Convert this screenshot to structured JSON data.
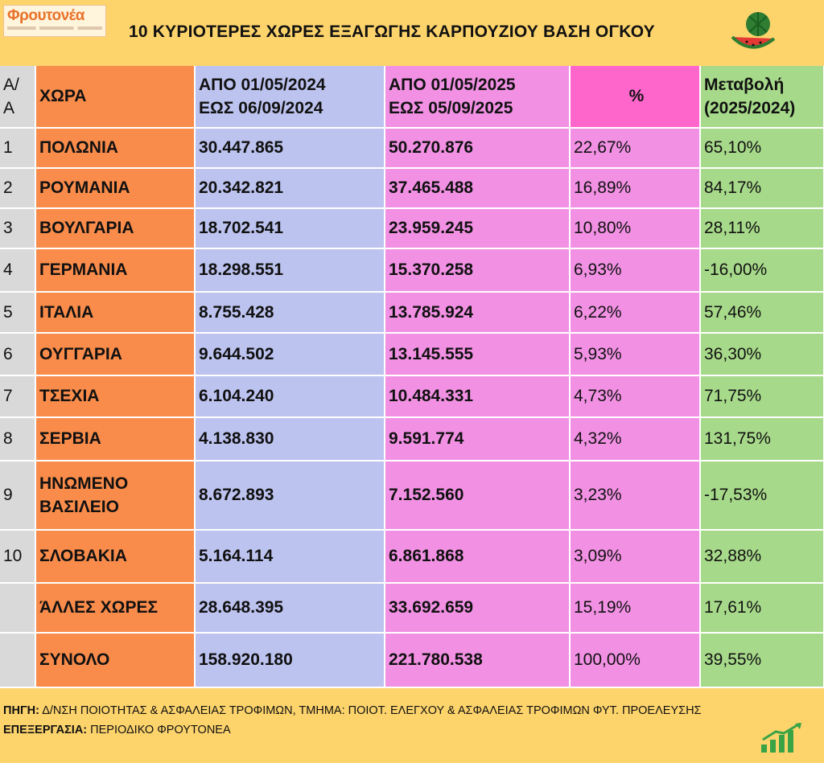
{
  "logo": {
    "text": "Φρουτονέα"
  },
  "title": "10 ΚΥΡΙΟΤΕΡΕΣ ΧΩΡΕΣ ΕΞΑΓΩΓΗΣ ΚΑΡΠΟΥΖΙΟΥ ΒΑΣΗ ΟΓΚΟΥ",
  "icons": {
    "header": "watermelon-icon",
    "footer": "growth-chart-icon"
  },
  "colors": {
    "background": "#fdd46c",
    "aa": "#d9d9d9",
    "country": "#f98c4b",
    "y2024": "#bcc3ef",
    "y2025": "#f291e4",
    "pct_header": "#ff66cc",
    "change": "#a7d98a"
  },
  "table": {
    "headers": {
      "aa_1": "Α/",
      "aa_2": "Α",
      "country": "ΧΩΡΑ",
      "y24_1": "ΑΠΟ 01/05/2024",
      "y24_2": "ΕΩΣ 06/09/2024",
      "y25_1": "ΑΠΟ 01/05/2025",
      "y25_2": "ΕΩΣ  05/09/2025",
      "pct": "%",
      "chg_1": "Μεταβολή",
      "chg_2": "(2025/2024)"
    },
    "rows": [
      {
        "aa": "1",
        "country": "ΠΟΛΩΝΙΑ",
        "y2024": "30.447.865",
        "y2025": "50.270.876",
        "pct": "22,67%",
        "change": "65,10%"
      },
      {
        "aa": "2",
        "country": "ΡΟΥΜΑΝΙΑ",
        "y2024": "20.342.821",
        "y2025": "37.465.488",
        "pct": "16,89%",
        "change": "84,17%"
      },
      {
        "aa": "3",
        "country": "ΒΟΥΛΓΑΡΙΑ",
        "y2024": "18.702.541",
        "y2025": "23.959.245",
        "pct": "10,80%",
        "change": "28,11%"
      },
      {
        "aa": "4",
        "country": "ΓΕΡΜΑΝΙΑ",
        "y2024": "18.298.551",
        "y2025": "15.370.258",
        "pct": "6,93%",
        "change": "-16,00%"
      },
      {
        "aa": "5",
        "country": "ΙΤΑΛΙΑ",
        "y2024": "8.755.428",
        "y2025": "13.785.924",
        "pct": "6,22%",
        "change": "57,46%"
      },
      {
        "aa": "6",
        "country": "ΟΥΓΓΑΡΙΑ",
        "y2024": "9.644.502",
        "y2025": "13.145.555",
        "pct": "5,93%",
        "change": "36,30%"
      },
      {
        "aa": "7",
        "country": "ΤΣΕΧΙΑ",
        "y2024": "6.104.240",
        "y2025": "10.484.331",
        "pct": "4,73%",
        "change": "71,75%"
      },
      {
        "aa": "8",
        "country": "ΣΕΡΒΙΑ",
        "y2024": "4.138.830",
        "y2025": "9.591.774",
        "pct": "4,32%",
        "change": "131,75%"
      },
      {
        "aa": "9",
        "country_1": "ΗΝΩΜΕΝΟ",
        "country_2": "ΒΑΣΙΛΕΙΟ",
        "y2024": "8.672.893",
        "y2025": "7.152.560",
        "pct": "3,23%",
        "change": "-17,53%"
      },
      {
        "aa": "10",
        "country": "ΣΛΟΒΑΚΙΑ",
        "y2024": "5.164.114",
        "y2025": "6.861.868",
        "pct": "3,09%",
        "change": "32,88%"
      },
      {
        "aa": "",
        "country": "ΆΛΛΕΣ ΧΩΡΕΣ",
        "y2024": "28.648.395",
        "y2025": "33.692.659",
        "pct": "15,19%",
        "change": "17,61%"
      },
      {
        "aa": "",
        "country": "ΣΥΝΟΛΟ",
        "y2024": "158.920.180",
        "y2025": "221.780.538",
        "pct": "100,00%",
        "change": "39,55%"
      }
    ]
  },
  "footer": {
    "source_label": "ΠΗΓΗ:",
    "source_text": " Δ/ΝΣΗ ΠΟΙΟΤΗΤΑΣ & ΑΣΦΑΛΕΙΑΣ ΤΡΟΦΙΜΩΝ, ΤΜΗΜΑ: ΠΟΙΟΤ. ΕΛΕΓΧΟΥ & ΑΣΦΑΛΕΙΑΣ ΤΡΟΦΙΜΩΝ ΦΥΤ. ΠΡΟΕΛΕΥΣΗΣ",
    "processing_label": "ΕΠΕΞΕΡΓΑΣΙΑ:",
    "processing_text": " ΠΕΡΙΟΔΙΚΟ ΦΡΟΥΤΟΝΕΑ"
  }
}
